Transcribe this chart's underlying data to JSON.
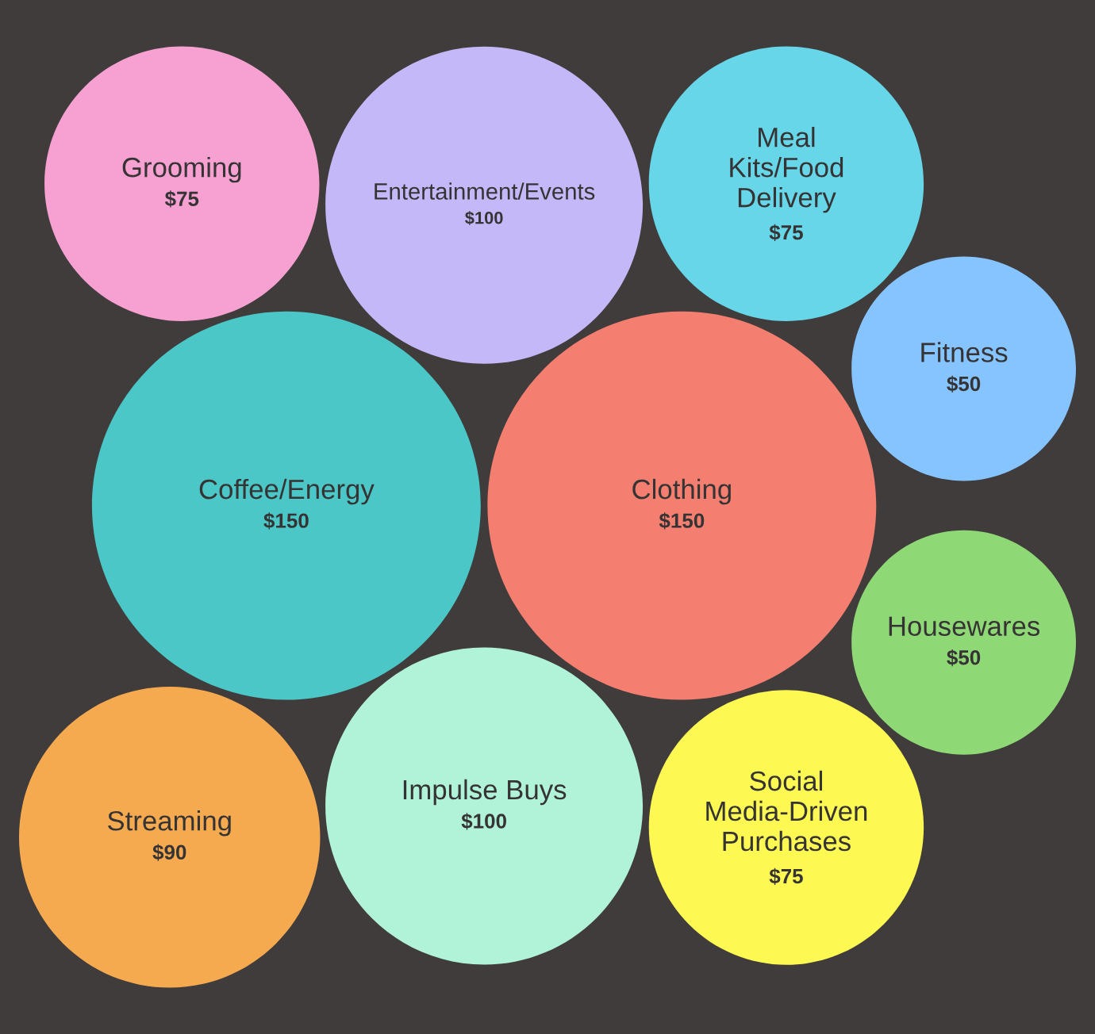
{
  "chart_data": {
    "type": "other",
    "categories": [
      "Clothing",
      "Coffee/Energy",
      "Entertainment/Events",
      "Impulse Buys",
      "Meal Kits/Food Delivery",
      "Social Media-Driven Purchases",
      "Grooming",
      "Streaming",
      "Fitness",
      "Housewares"
    ],
    "values": [
      150,
      150,
      100,
      100,
      75,
      75,
      75,
      90,
      50,
      50
    ],
    "value_labels": [
      "$150",
      "$150",
      "$100",
      "$100",
      "$75",
      "$75",
      "$75",
      "$90",
      "$50",
      "$50"
    ],
    "colors": [
      "#f47f70",
      "#4ac7c6",
      "#c4b8f8",
      "#b1f3d8",
      "#66d6e8",
      "#fdf952",
      "#f7a1d2",
      "#f6aa50",
      "#85c4ff",
      "#8fd876"
    ]
  }
}
